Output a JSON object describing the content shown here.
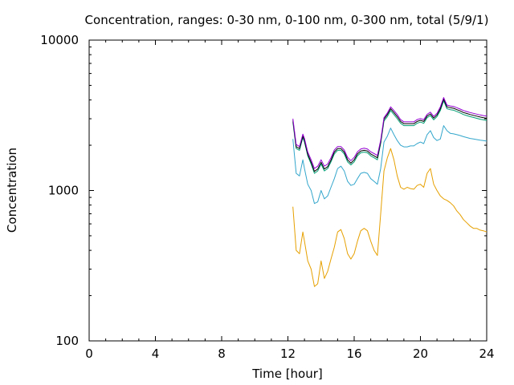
{
  "chart_data": {
    "type": "line",
    "title": "Concentration, ranges: 0-30 nm, 0-100 nm, 0-300 nm, total (5/9/1)",
    "xlabel": "Time [hour]",
    "ylabel": "Concentration",
    "xlim": [
      0,
      24
    ],
    "ylim": [
      100,
      10000
    ],
    "yscale": "log",
    "grid": false,
    "x_ticks": [
      "0",
      "4",
      "8",
      "12",
      "16",
      "20",
      "24"
    ],
    "y_ticks": [
      "100",
      "1000",
      "10000"
    ],
    "x": [
      12.3,
      12.5,
      12.7,
      12.9,
      13.0,
      13.2,
      13.4,
      13.6,
      13.8,
      14.0,
      14.2,
      14.4,
      14.6,
      14.8,
      15.0,
      15.2,
      15.4,
      15.6,
      15.8,
      16.0,
      16.2,
      16.4,
      16.6,
      16.8,
      17.0,
      17.2,
      17.4,
      17.6,
      17.8,
      18.0,
      18.2,
      18.4,
      18.6,
      18.8,
      19.0,
      19.2,
      19.4,
      19.6,
      19.8,
      20.0,
      20.2,
      20.4,
      20.6,
      20.8,
      21.0,
      21.2,
      21.4,
      21.6,
      21.8,
      22.0,
      22.2,
      22.4,
      22.6,
      22.8,
      23.0,
      23.2,
      23.4,
      23.6,
      23.8,
      24.0
    ],
    "series": [
      {
        "color": "#e6a000",
        "values": [
          780,
          400,
          380,
          530,
          460,
          340,
          300,
          230,
          240,
          340,
          260,
          290,
          350,
          420,
          530,
          550,
          480,
          380,
          350,
          380,
          460,
          540,
          560,
          540,
          460,
          400,
          370,
          700,
          1350,
          1650,
          1900,
          1600,
          1250,
          1050,
          1020,
          1050,
          1030,
          1020,
          1080,
          1100,
          1050,
          1300,
          1400,
          1100,
          1000,
          920,
          880,
          860,
          830,
          790,
          730,
          690,
          640,
          610,
          580,
          560,
          560,
          545,
          540,
          530
        ]
      },
      {
        "color": "#33a6cc",
        "values": [
          2200,
          1300,
          1250,
          1600,
          1400,
          1100,
          1000,
          820,
          840,
          1000,
          880,
          920,
          1050,
          1200,
          1400,
          1450,
          1350,
          1150,
          1080,
          1100,
          1200,
          1300,
          1320,
          1300,
          1200,
          1150,
          1100,
          1400,
          2100,
          2300,
          2600,
          2350,
          2150,
          2000,
          1950,
          1950,
          1980,
          1980,
          2050,
          2100,
          2050,
          2350,
          2500,
          2250,
          2150,
          2200,
          2700,
          2500,
          2400,
          2380,
          2350,
          2320,
          2280,
          2250,
          2220,
          2200,
          2180,
          2160,
          2150,
          2130
        ]
      },
      {
        "color": "#009e73",
        "values": [
          2850,
          1900,
          1850,
          2250,
          2100,
          1700,
          1500,
          1300,
          1350,
          1500,
          1350,
          1400,
          1550,
          1750,
          1850,
          1850,
          1750,
          1550,
          1480,
          1550,
          1700,
          1780,
          1800,
          1780,
          1700,
          1650,
          1600,
          2050,
          2900,
          3100,
          3400,
          3200,
          3000,
          2800,
          2700,
          2700,
          2700,
          2700,
          2800,
          2850,
          2800,
          3050,
          3150,
          2950,
          3100,
          3400,
          3950,
          3500,
          3450,
          3420,
          3350,
          3280,
          3200,
          3150,
          3100,
          3060,
          3020,
          2980,
          2950,
          2920
        ]
      },
      {
        "color": "#000000",
        "values": [
          2920,
          1950,
          1900,
          2300,
          2150,
          1740,
          1540,
          1340,
          1390,
          1540,
          1390,
          1440,
          1590,
          1800,
          1900,
          1900,
          1800,
          1600,
          1520,
          1600,
          1750,
          1830,
          1850,
          1830,
          1750,
          1700,
          1650,
          2100,
          2980,
          3200,
          3500,
          3300,
          3100,
          2880,
          2780,
          2780,
          2780,
          2780,
          2880,
          2930,
          2880,
          3130,
          3230,
          3030,
          3180,
          3500,
          4050,
          3600,
          3550,
          3520,
          3450,
          3380,
          3300,
          3250,
          3200,
          3160,
          3120,
          3080,
          3050,
          3020
        ]
      },
      {
        "color": "#9400d3",
        "values": [
          3000,
          2020,
          1960,
          2370,
          2220,
          1800,
          1600,
          1400,
          1450,
          1600,
          1450,
          1500,
          1650,
          1860,
          1960,
          1960,
          1860,
          1660,
          1580,
          1660,
          1810,
          1890,
          1910,
          1890,
          1810,
          1760,
          1710,
          2160,
          3050,
          3280,
          3600,
          3400,
          3200,
          2960,
          2860,
          2860,
          2860,
          2860,
          2960,
          3010,
          2960,
          3210,
          3320,
          3110,
          3260,
          3600,
          4150,
          3700,
          3650,
          3620,
          3550,
          3480,
          3400,
          3350,
          3300,
          3260,
          3220,
          3180,
          3150,
          3120
        ]
      }
    ]
  }
}
